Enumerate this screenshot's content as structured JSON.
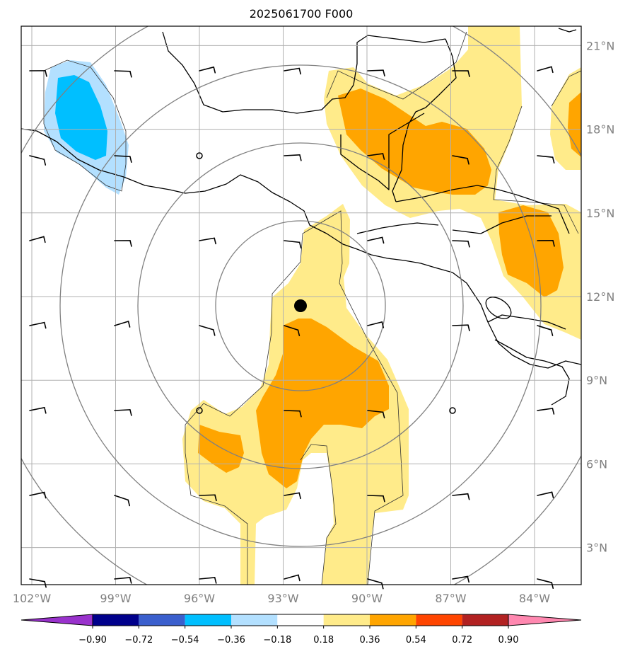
{
  "title": "2025061700 F000",
  "map": {
    "lon_labels": [
      "102°W",
      "99°W",
      "96°W",
      "93°W",
      "90°W",
      "87°W",
      "84°W"
    ],
    "lat_labels": [
      "21°N",
      "18°N",
      "15°N",
      "12°N",
      "9°N",
      "6°N",
      "3°N"
    ],
    "center_marker": {
      "lon": -92.3,
      "lat": 11.7
    }
  },
  "colorbar": {
    "levels": [
      "−0.90",
      "−0.72",
      "−0.54",
      "−0.36",
      "−0.18",
      "0.18",
      "0.36",
      "0.54",
      "0.72",
      "0.90"
    ],
    "colors": [
      "#9932cc",
      "#00008b",
      "#3a5fcd",
      "#00bfff",
      "#b3e0ff",
      "#ffffff",
      "#ffeb8a",
      "#ffa500",
      "#ff4500",
      "#b22222",
      "#ff88b0"
    ]
  },
  "colors": {
    "light_yellow": "#ffeb8a",
    "orange": "#ffa500",
    "light_blue": "#b3e0ff",
    "cyan": "#00bfff",
    "grid": "#b0b0b0",
    "rings": "#808080"
  }
}
